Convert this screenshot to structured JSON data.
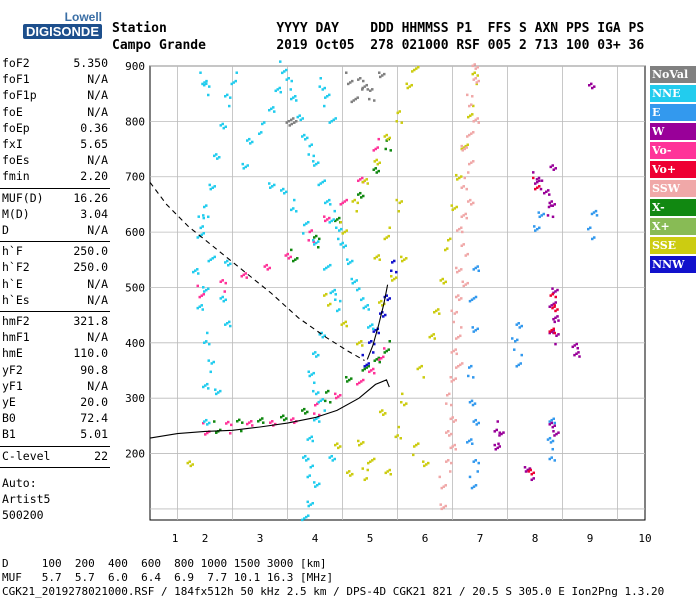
{
  "logo": {
    "brand": "Lowell",
    "product": "DIGISONDE"
  },
  "header": {
    "line1": "Station              YYYY DAY    DDD HHMMSS P1  FFS S AXN PPS IGA PS",
    "line2": "Campo Grande         2019 Oct05  278 021000 RSF 005 2 713 100 03+ 36"
  },
  "params": [
    {
      "k": "foF2",
      "v": "5.350"
    },
    {
      "k": "foF1",
      "v": "N/A"
    },
    {
      "k": "foF1p",
      "v": "N/A"
    },
    {
      "k": "foE",
      "v": "N/A"
    },
    {
      "k": "foEp",
      "v": "0.36"
    },
    {
      "k": "fxI",
      "v": "5.65"
    },
    {
      "k": "foEs",
      "v": "N/A"
    },
    {
      "k": "fmin",
      "v": "2.20"
    },
    {
      "k": "MUF(D)",
      "v": "16.26"
    },
    {
      "k": "M(D)",
      "v": "3.04"
    },
    {
      "k": "D",
      "v": "N/A"
    },
    {
      "k": "h`F",
      "v": "250.0"
    },
    {
      "k": "h`F2",
      "v": "250.0"
    },
    {
      "k": "h`E",
      "v": "N/A"
    },
    {
      "k": "h`Es",
      "v": "N/A"
    },
    {
      "k": "hmF2",
      "v": "321.8"
    },
    {
      "k": "hmF1",
      "v": "N/A"
    },
    {
      "k": "hmE",
      "v": "110.0"
    },
    {
      "k": "yF2",
      "v": "90.8"
    },
    {
      "k": "yF1",
      "v": "N/A"
    },
    {
      "k": "yE",
      "v": "20.0"
    },
    {
      "k": "B0",
      "v": "72.4"
    },
    {
      "k": "B1",
      "v": "5.01"
    },
    {
      "k": "C-level",
      "v": "22"
    }
  ],
  "auto": {
    "l1": "Auto:",
    "l2": "Artist5",
    "l3": "500200"
  },
  "legend": [
    {
      "label": "NoVal",
      "color": "#808080"
    },
    {
      "label": "NNE",
      "color": "#22ccee"
    },
    {
      "label": "E",
      "color": "#3399ee"
    },
    {
      "label": "W",
      "color": "#990099"
    },
    {
      "label": "Vo-",
      "color": "#ff3399"
    },
    {
      "label": "Vo+",
      "color": "#ee0033"
    },
    {
      "label": "SSW",
      "color": "#f0a8a8"
    },
    {
      "label": "X-",
      "color": "#118811"
    },
    {
      "label": "X+",
      "color": "#88bb55"
    },
    {
      "label": "SSE",
      "color": "#cccc11"
    },
    {
      "label": "NNW",
      "color": "#1111cc"
    }
  ],
  "footer": {
    "line1": "D     100  200  400  600  800 1000 1500 3000 [km]",
    "line2": "MUF   5.7  5.7  6.0  6.4  6.9  7.7 10.1 16.3 [MHz]",
    "line3": "CGK21_2019278021000.RSF / 184fx512h 50 kHz 2.5 km / DPS-4D CGK21 821 / 20.5 S 305.0 E Ion2Png 1.3.20"
  },
  "chart_data": {
    "type": "scatter",
    "xlabel": "",
    "ylabel": "",
    "xlim": [
      1,
      10
    ],
    "ylim": [
      80,
      900
    ],
    "x_ticks": [
      1,
      2,
      3,
      4,
      5,
      6,
      7,
      8,
      9,
      10
    ],
    "y_ticks": [
      100,
      200,
      300,
      400,
      500,
      600,
      700,
      800,
      900
    ],
    "y_tick_labels": [
      "",
      "200",
      "300",
      "400",
      "500",
      "600",
      "700",
      "800",
      "900"
    ],
    "grid": true,
    "traces": [
      {
        "name": "X-",
        "color": "#118811",
        "points": [
          [
            2.2,
            250
          ],
          [
            2.6,
            253
          ],
          [
            3,
            258
          ],
          [
            3.4,
            268
          ],
          [
            3.8,
            285
          ],
          [
            4.2,
            305
          ],
          [
            4.6,
            330
          ],
          [
            4.9,
            355
          ],
          [
            5.1,
            375
          ],
          [
            5.3,
            395
          ]
        ]
      },
      {
        "name": "Vo-",
        "color": "#ff3399",
        "points": [
          [
            2.0,
            247
          ],
          [
            2.4,
            249
          ],
          [
            2.8,
            253
          ],
          [
            3.2,
            258
          ],
          [
            3.6,
            268
          ],
          [
            4.0,
            282
          ],
          [
            4.4,
            300
          ],
          [
            4.8,
            330
          ],
          [
            5.0,
            355
          ],
          [
            5.2,
            382
          ]
        ]
      },
      {
        "name": "NNW",
        "color": "#1111cc",
        "points": [
          [
            4.9,
            370
          ],
          [
            5.0,
            395
          ],
          [
            5.1,
            420
          ],
          [
            5.2,
            455
          ],
          [
            5.3,
            490
          ],
          [
            5.4,
            540
          ]
        ]
      },
      {
        "name": "Vo-",
        "color": "#ff3399",
        "points": [
          [
            1.9,
            495
          ],
          [
            2.3,
            505
          ],
          [
            2.7,
            520
          ],
          [
            3.1,
            540
          ],
          [
            3.5,
            565
          ],
          [
            3.9,
            595
          ],
          [
            4.2,
            620
          ],
          [
            4.5,
            655
          ],
          [
            4.8,
            700
          ],
          [
            5.1,
            760
          ]
        ]
      },
      {
        "name": "X-",
        "color": "#118811",
        "points": [
          [
            3.6,
            560
          ],
          [
            4.0,
            585
          ],
          [
            4.4,
            620
          ],
          [
            4.8,
            670
          ],
          [
            5.1,
            720
          ],
          [
            5.3,
            760
          ]
        ]
      },
      {
        "name": "SSE",
        "color": "#cccc11",
        "points": [
          [
            4.5,
            610
          ],
          [
            4.7,
            650
          ],
          [
            4.9,
            690
          ],
          [
            5.1,
            730
          ],
          [
            5.3,
            780
          ],
          [
            5.5,
            810
          ],
          [
            5.7,
            860
          ],
          [
            5.8,
            895
          ],
          [
            5.1,
            560
          ],
          [
            5.3,
            600
          ],
          [
            5.5,
            650
          ],
          [
            5.2,
            470
          ],
          [
            5.4,
            520
          ],
          [
            5.6,
            560
          ],
          [
            4.2,
            480
          ],
          [
            4.5,
            430
          ],
          [
            4.8,
            400
          ],
          [
            5.2,
            280
          ],
          [
            5.5,
            240
          ],
          [
            5.8,
            210
          ],
          [
            6.0,
            180
          ],
          [
            5.0,
            190
          ],
          [
            5.3,
            175
          ],
          [
            4.9,
            165
          ],
          [
            4.6,
            160
          ],
          [
            4.4,
            215
          ],
          [
            4.8,
            225
          ],
          [
            5.6,
            300
          ],
          [
            5.9,
            350
          ],
          [
            6.1,
            410
          ],
          [
            6.2,
            460
          ],
          [
            6.3,
            520
          ],
          [
            6.4,
            580
          ],
          [
            6.5,
            640
          ],
          [
            6.6,
            700
          ],
          [
            6.7,
            760
          ],
          [
            6.8,
            820
          ],
          [
            6.9,
            880
          ],
          [
            1.7,
            180
          ]
        ]
      },
      {
        "name": "NNE",
        "color": "#22ccee",
        "points": [
          [
            3.4,
            900
          ],
          [
            3.5,
            870
          ],
          [
            3.6,
            840
          ],
          [
            3.7,
            810
          ],
          [
            3.8,
            780
          ],
          [
            3.9,
            750
          ],
          [
            4.0,
            720
          ],
          [
            4.1,
            690
          ],
          [
            4.2,
            660
          ],
          [
            4.3,
            630
          ],
          [
            4.4,
            600
          ],
          [
            4.5,
            575
          ],
          [
            4.6,
            550
          ],
          [
            4.7,
            520
          ],
          [
            4.8,
            490
          ],
          [
            4.9,
            460
          ],
          [
            5.0,
            430
          ],
          [
            3.4,
            680
          ],
          [
            3.6,
            650
          ],
          [
            3.8,
            610
          ],
          [
            4.0,
            580
          ],
          [
            4.2,
            540
          ],
          [
            4.3,
            500
          ],
          [
            4.4,
            470
          ],
          [
            4.1,
            410
          ],
          [
            4.0,
            380
          ],
          [
            3.9,
            350
          ],
          [
            4.0,
            320
          ],
          [
            4.1,
            290
          ],
          [
            4.0,
            260
          ],
          [
            3.9,
            230
          ],
          [
            3.8,
            200
          ],
          [
            3.9,
            170
          ],
          [
            4.0,
            140
          ],
          [
            3.9,
            110
          ],
          [
            3.8,
            90
          ],
          [
            2.5,
            880
          ],
          [
            2.4,
            840
          ],
          [
            2.3,
            790
          ],
          [
            2.2,
            740
          ],
          [
            2.1,
            690
          ],
          [
            2.0,
            640
          ],
          [
            1.9,
            590
          ],
          [
            1.8,
            530
          ],
          [
            1.9,
            470
          ],
          [
            2.0,
            410
          ],
          [
            2.1,
            360
          ],
          [
            2.2,
            310
          ],
          [
            2.0,
            500
          ],
          [
            2.1,
            560
          ],
          [
            1.9,
            620
          ],
          [
            2.4,
            430
          ],
          [
            2.3,
            480
          ],
          [
            2.4,
            550
          ],
          [
            4.1,
            870
          ],
          [
            4.2,
            840
          ],
          [
            4.3,
            800
          ],
          [
            3.3,
            860
          ],
          [
            3.2,
            830
          ],
          [
            3.0,
            790
          ],
          [
            2.8,
            760
          ],
          [
            2.7,
            720
          ],
          [
            3.2,
            690
          ],
          [
            1.95,
            880
          ],
          [
            2.0,
            860
          ],
          [
            2.0,
            320
          ],
          [
            2.0,
            260
          ],
          [
            4.3,
            200
          ]
        ]
      },
      {
        "name": "SSW",
        "color": "#f0a8a8",
        "points": [
          [
            6.3,
            150
          ],
          [
            6.4,
            180
          ],
          [
            6.5,
            210
          ],
          [
            6.4,
            240
          ],
          [
            6.5,
            270
          ],
          [
            6.4,
            300
          ],
          [
            6.5,
            330
          ],
          [
            6.6,
            360
          ],
          [
            6.5,
            390
          ],
          [
            6.6,
            420
          ],
          [
            6.5,
            450
          ],
          [
            6.6,
            480
          ],
          [
            6.7,
            510
          ],
          [
            6.6,
            540
          ],
          [
            6.7,
            570
          ],
          [
            6.6,
            600
          ],
          [
            6.7,
            630
          ],
          [
            6.8,
            660
          ],
          [
            6.7,
            690
          ],
          [
            6.8,
            720
          ],
          [
            6.7,
            750
          ],
          [
            6.8,
            780
          ],
          [
            6.9,
            810
          ],
          [
            6.8,
            840
          ],
          [
            6.9,
            870
          ],
          [
            6.9,
            900
          ],
          [
            6.3,
            110
          ]
        ]
      },
      {
        "name": "E",
        "color": "#3399ee",
        "points": [
          [
            6.85,
            150
          ],
          [
            6.9,
            180
          ],
          [
            6.8,
            220
          ],
          [
            6.9,
            260
          ],
          [
            6.85,
            300
          ],
          [
            6.8,
            350
          ],
          [
            6.9,
            420
          ],
          [
            6.85,
            480
          ],
          [
            6.9,
            540
          ],
          [
            7.7,
            370
          ],
          [
            7.6,
            400
          ],
          [
            7.7,
            430
          ],
          [
            8.0,
            610
          ],
          [
            8.1,
            640
          ],
          [
            9.0,
            600
          ],
          [
            9.05,
            630
          ],
          [
            8.3,
            260
          ],
          [
            8.25,
            230
          ],
          [
            8.3,
            200
          ]
        ]
      },
      {
        "name": "W",
        "color": "#990099",
        "points": [
          [
            8.0,
            700
          ],
          [
            8.05,
            690
          ],
          [
            8.2,
            670
          ],
          [
            8.3,
            720
          ],
          [
            8.3,
            660
          ],
          [
            8.25,
            640
          ],
          [
            8.35,
            490
          ],
          [
            8.3,
            470
          ],
          [
            8.35,
            450
          ],
          [
            8.3,
            430
          ],
          [
            8.35,
            410
          ],
          [
            8.3,
            250
          ],
          [
            8.35,
            240
          ],
          [
            7.85,
            180
          ],
          [
            7.9,
            165
          ],
          [
            8.7,
            390
          ],
          [
            8.75,
            380
          ],
          [
            9.0,
            870
          ],
          [
            7.3,
            250
          ],
          [
            7.35,
            230
          ],
          [
            7.3,
            210
          ]
        ]
      },
      {
        "name": "Vo+",
        "color": "#ee0033",
        "points": [
          [
            8.0,
            690
          ],
          [
            8.3,
            480
          ],
          [
            8.3,
            420
          ],
          [
            7.9,
            170
          ],
          [
            8.35,
            470
          ]
        ]
      },
      {
        "name": "NoVal",
        "color": "#808080",
        "points": [
          [
            4.6,
            880
          ],
          [
            4.8,
            870
          ],
          [
            4.9,
            860
          ],
          [
            3.5,
            800
          ],
          [
            3.6,
            810
          ],
          [
            5.0,
            850
          ],
          [
            5.2,
            880
          ],
          [
            4.7,
            840
          ]
        ]
      }
    ],
    "curves": [
      {
        "name": "virtual-height",
        "style": "solid",
        "points": [
          [
            1.0,
            228
          ],
          [
            1.5,
            236
          ],
          [
            2.0,
            240
          ],
          [
            2.5,
            242
          ],
          [
            3.0,
            248
          ],
          [
            3.5,
            255
          ],
          [
            4.0,
            265
          ],
          [
            4.4,
            278
          ],
          [
            4.8,
            300
          ],
          [
            5.1,
            325
          ],
          [
            5.3,
            333
          ],
          [
            5.35,
            320
          ]
        ]
      },
      {
        "name": "ordinary-trace",
        "style": "solid",
        "points": [
          [
            4.95,
            370
          ],
          [
            5.05,
            395
          ],
          [
            5.15,
            430
          ],
          [
            5.25,
            470
          ],
          [
            5.32,
            505
          ]
        ]
      },
      {
        "name": "profile",
        "style": "dashed",
        "points": [
          [
            1.0,
            690
          ],
          [
            1.3,
            650
          ],
          [
            1.7,
            610
          ],
          [
            2.2,
            570
          ],
          [
            2.7,
            530
          ],
          [
            3.2,
            490
          ],
          [
            3.7,
            445
          ],
          [
            4.2,
            410
          ],
          [
            4.6,
            385
          ],
          [
            4.9,
            368
          ]
        ]
      }
    ]
  }
}
